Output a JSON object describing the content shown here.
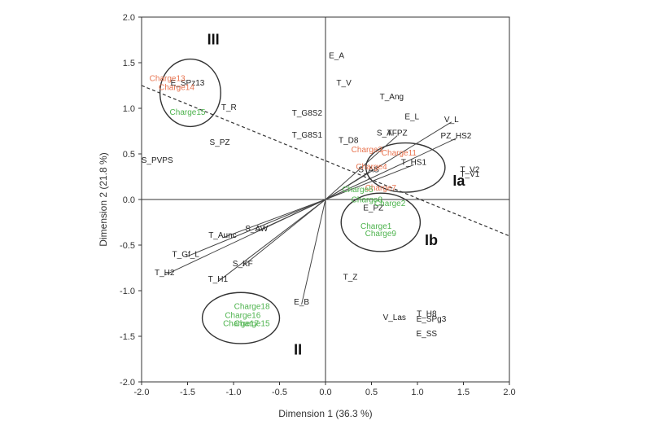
{
  "chart_data": {
    "type": "scatter",
    "xlabel": "Dimension 1 (36.3 %)",
    "ylabel": "Dimension 2 (21.8 %)",
    "xlim": [
      -2.0,
      2.0
    ],
    "ylim": [
      -2.0,
      2.0
    ],
    "x_ticks": [
      "-2.0",
      "-1.5",
      "-1.0",
      "-0.5",
      "0.0",
      "0.5",
      "1.0",
      "1.5",
      "2.0"
    ],
    "y_ticks": [
      "-2.0",
      "-1.5",
      "-1.0",
      "-0.5",
      "0.0",
      "0.5",
      "1.0",
      "1.5",
      "2.0"
    ],
    "colors": {
      "variable": "#222222",
      "charge_red": "#e8734f",
      "charge_green": "#4db34d"
    },
    "variables": [
      {
        "label": "E_A",
        "x": 0.12,
        "y": 1.55,
        "vector": false
      },
      {
        "label": "T_V",
        "x": 0.2,
        "y": 1.25,
        "vector": false
      },
      {
        "label": "T_Ang",
        "x": 0.72,
        "y": 1.1,
        "vector": false
      },
      {
        "label": "T_G8S2",
        "x": -0.2,
        "y": 0.92,
        "vector": false
      },
      {
        "label": "E_L",
        "x": 0.94,
        "y": 0.88,
        "vector": false
      },
      {
        "label": "V_L",
        "x": 1.37,
        "y": 0.85,
        "vector": true
      },
      {
        "label": "T_G8S1",
        "x": -0.2,
        "y": 0.68,
        "vector": false
      },
      {
        "label": "S_A",
        "x": 0.64,
        "y": 0.7,
        "vector": false
      },
      {
        "label": "TFPZ",
        "x": 0.78,
        "y": 0.7,
        "vector": true
      },
      {
        "label": "PZ_HS2",
        "x": 1.42,
        "y": 0.67,
        "vector": true
      },
      {
        "label": "T_D8",
        "x": 0.25,
        "y": 0.62,
        "vector": false
      },
      {
        "label": "T_HS1",
        "x": 0.96,
        "y": 0.38,
        "vector": true
      },
      {
        "label": "S_AS",
        "x": 0.47,
        "y": 0.3,
        "vector": true
      },
      {
        "label": "T_V2",
        "x": 1.57,
        "y": 0.3,
        "vector": false
      },
      {
        "label": "T_V1",
        "x": 1.57,
        "y": 0.25,
        "vector": false
      },
      {
        "label": "E_PZ",
        "x": 0.52,
        "y": -0.12,
        "vector": false
      },
      {
        "label": "E_SPz13",
        "x": -1.5,
        "y": 1.25,
        "vector": false
      },
      {
        "label": "T_R",
        "x": -1.05,
        "y": 0.98,
        "vector": false
      },
      {
        "label": "S_PZ",
        "x": -1.15,
        "y": 0.6,
        "vector": false
      },
      {
        "label": "S_PVPS",
        "x": -1.83,
        "y": 0.4,
        "vector": false
      },
      {
        "label": "S_AW",
        "x": -0.75,
        "y": -0.35,
        "vector": true
      },
      {
        "label": "T_Aunc",
        "x": -1.12,
        "y": -0.42,
        "vector": true
      },
      {
        "label": "T_Gf_L",
        "x": -1.52,
        "y": -0.63,
        "vector": true
      },
      {
        "label": "T_H2",
        "x": -1.75,
        "y": -0.83,
        "vector": true
      },
      {
        "label": "S_KF",
        "x": -0.9,
        "y": -0.73,
        "vector": true
      },
      {
        "label": "T_H1",
        "x": -1.17,
        "y": -0.9,
        "vector": true
      },
      {
        "label": "T_Z",
        "x": 0.27,
        "y": -0.88,
        "vector": false
      },
      {
        "label": "E_B",
        "x": -0.26,
        "y": -1.15,
        "vector": true
      },
      {
        "label": "V_Las",
        "x": 0.75,
        "y": -1.32,
        "vector": false
      },
      {
        "label": "T_H8",
        "x": 1.1,
        "y": -1.28,
        "vector": false
      },
      {
        "label": "E_SPg3",
        "x": 1.15,
        "y": -1.34,
        "vector": false
      },
      {
        "label": "E_SS",
        "x": 1.1,
        "y": -1.5,
        "vector": false
      }
    ],
    "charges": [
      {
        "label": "Charge13",
        "x": -1.72,
        "y": 1.3,
        "color": "red"
      },
      {
        "label": "Charge14",
        "x": -1.62,
        "y": 1.2,
        "color": "red"
      },
      {
        "label": "Charge15",
        "x": -1.5,
        "y": 0.93,
        "color": "green"
      },
      {
        "label": "Charge3",
        "x": 0.45,
        "y": 0.52,
        "color": "red"
      },
      {
        "label": "Charge11",
        "x": 0.8,
        "y": 0.48,
        "color": "red"
      },
      {
        "label": "Charge4",
        "x": 0.5,
        "y": 0.33,
        "color": "red"
      },
      {
        "label": "Charge7",
        "x": 0.6,
        "y": 0.1,
        "color": "red"
      },
      {
        "label": "Charge5",
        "x": 0.35,
        "y": 0.08,
        "color": "green"
      },
      {
        "label": "Charge8",
        "x": 0.45,
        "y": -0.03,
        "color": "green"
      },
      {
        "label": "Charge2",
        "x": 0.7,
        "y": -0.07,
        "color": "green"
      },
      {
        "label": "Charge1",
        "x": 0.55,
        "y": -0.32,
        "color": "green"
      },
      {
        "label": "Charge9",
        "x": 0.6,
        "y": -0.4,
        "color": "green"
      },
      {
        "label": "Charge18",
        "x": -0.8,
        "y": -1.2,
        "color": "green"
      },
      {
        "label": "Charge16",
        "x": -0.9,
        "y": -1.3,
        "color": "green"
      },
      {
        "label": "Charge17",
        "x": -0.92,
        "y": -1.39,
        "color": "green"
      },
      {
        "label": "Charge15",
        "x": -0.8,
        "y": -1.39,
        "color": "green"
      }
    ],
    "groups": [
      {
        "label": "III",
        "x": -1.22,
        "y": 1.7,
        "ellipse": {
          "cx": -1.47,
          "cy": 1.17,
          "rx": 0.33,
          "ry": 0.37
        }
      },
      {
        "label": "Ia",
        "x": 1.45,
        "y": 0.15,
        "ellipse": {
          "cx": 0.87,
          "cy": 0.35,
          "rx": 0.43,
          "ry": 0.27
        }
      },
      {
        "label": "Ib",
        "x": 1.15,
        "y": -0.5,
        "ellipse": {
          "cx": 0.6,
          "cy": -0.25,
          "rx": 0.43,
          "ry": 0.32
        }
      },
      {
        "label": "II",
        "x": -0.3,
        "y": -1.7,
        "ellipse": {
          "cx": -0.92,
          "cy": -1.3,
          "rx": 0.42,
          "ry": 0.28
        }
      }
    ],
    "dashed_line": [
      [
        -2.0,
        1.25
      ],
      [
        2.0,
        -0.4
      ]
    ]
  }
}
